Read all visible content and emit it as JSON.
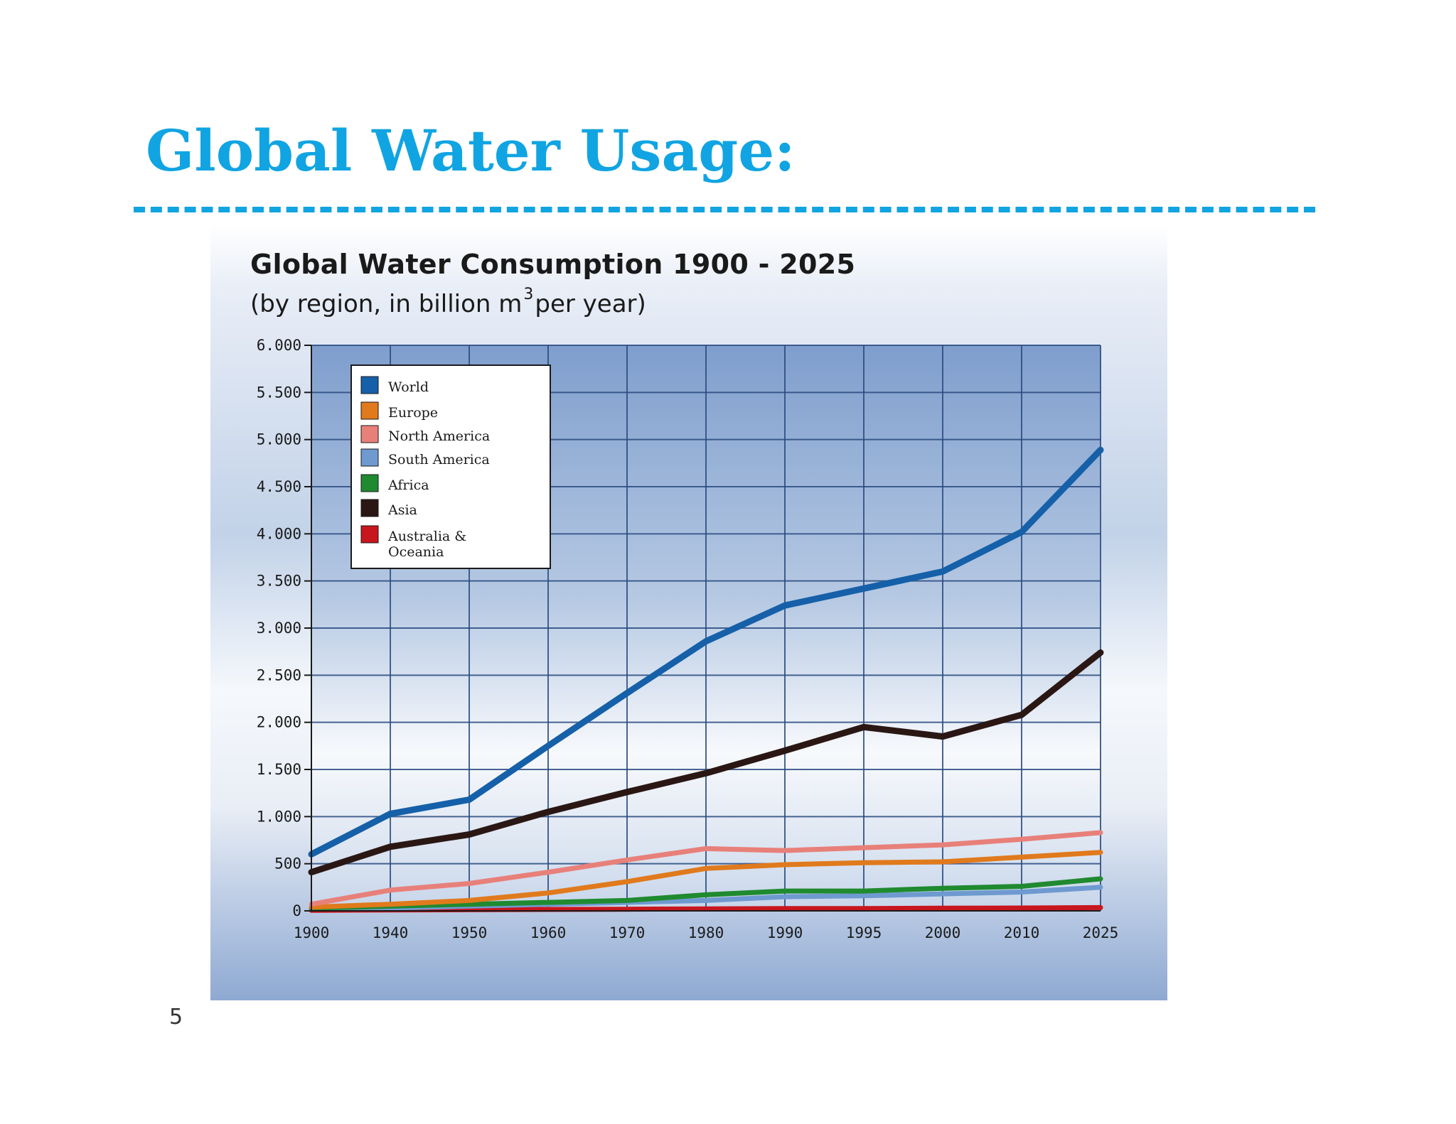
{
  "slide": {
    "title": "Global Water Usage:",
    "page_number": "5"
  },
  "colors": {
    "title_blue": "#11a4e2",
    "plot_bg_top": "#7f9ecd",
    "grid": "#2a4b80"
  },
  "chart_data": {
    "type": "line",
    "title": "Global Water Consumption 1900 - 2025",
    "subtitle_pre": "(by region, in billion m",
    "subtitle_sup": "3",
    "subtitle_post": "per year)",
    "xlabel": "",
    "ylabel": "",
    "x": [
      1900,
      1940,
      1950,
      1960,
      1970,
      1980,
      1990,
      1995,
      2000,
      2010,
      2025
    ],
    "x_tick_labels": [
      "1900",
      "1940",
      "1950",
      "1960",
      "1970",
      "1980",
      "1990",
      "1995",
      "2000",
      "2010",
      "2025"
    ],
    "y_ticks": [
      0,
      500,
      1000,
      1500,
      2000,
      2500,
      3000,
      3500,
      4000,
      4500,
      5000,
      5500,
      6000
    ],
    "y_tick_labels": [
      "0",
      "500",
      "1.000",
      "1.500",
      "2.000",
      "2.500",
      "3.000",
      "3.500",
      "4.000",
      "4.500",
      "5.000",
      "5.500",
      "6.000"
    ],
    "ylim": [
      0,
      6000
    ],
    "grid": true,
    "legend_position": "top-left",
    "series": [
      {
        "name": "World",
        "color": "#1560a8",
        "values": [
          600,
          1030,
          1180,
          1750,
          2310,
          2860,
          3240,
          3420,
          3600,
          4020,
          4890
        ]
      },
      {
        "name": "Europe",
        "color": "#e07a1c",
        "values": [
          40,
          70,
          110,
          190,
          310,
          450,
          490,
          510,
          520,
          570,
          620
        ]
      },
      {
        "name": "North America",
        "color": "#e8807a",
        "values": [
          70,
          220,
          290,
          410,
          540,
          660,
          640,
          670,
          700,
          760,
          830
        ]
      },
      {
        "name": "South America",
        "color": "#6f9ad0",
        "values": [
          20,
          30,
          50,
          70,
          90,
          110,
          150,
          160,
          180,
          200,
          250
        ]
      },
      {
        "name": "Africa",
        "color": "#1f8a2f",
        "values": [
          30,
          50,
          70,
          90,
          110,
          170,
          210,
          210,
          240,
          260,
          340
        ]
      },
      {
        "name": "Asia",
        "color": "#2a1714",
        "values": [
          410,
          680,
          810,
          1050,
          1260,
          1460,
          1700,
          1950,
          1850,
          2080,
          2740
        ]
      },
      {
        "name": "Australia & Oceania",
        "color": "#c8161e",
        "values": [
          5,
          10,
          12,
          15,
          17,
          20,
          25,
          25,
          28,
          30,
          35
        ]
      }
    ]
  }
}
